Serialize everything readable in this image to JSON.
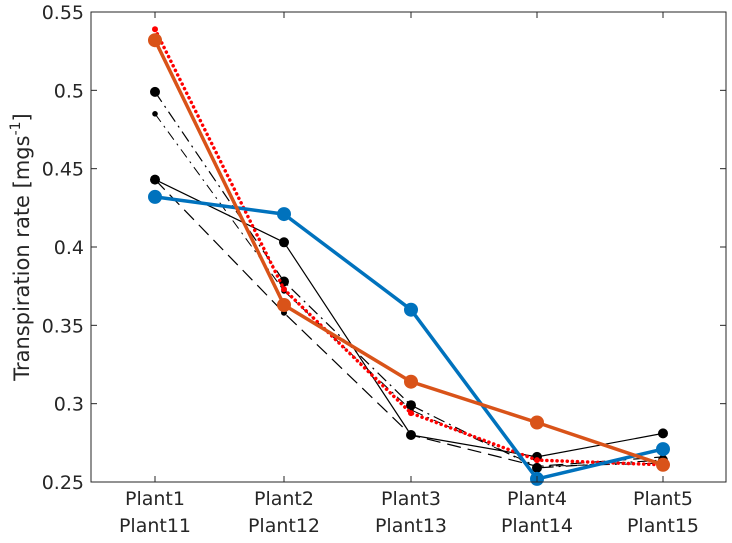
{
  "chart_data": {
    "type": "line",
    "title": "",
    "xlabel": "",
    "ylabel": "Transpiration rate [mgs",
    "ylabel_superscript": "-1",
    "ylabel_suffix": "]",
    "ylim": [
      0.25,
      0.55
    ],
    "yticks": [
      "0.25",
      "0.3",
      "0.35",
      "0.4",
      "0.45",
      "0.5",
      "0.55"
    ],
    "categories": [
      [
        "Plant1",
        "Plant11"
      ],
      [
        "Plant2",
        "Plant12"
      ],
      [
        "Plant3",
        "Plant13"
      ],
      [
        "Plant4",
        "Plant14"
      ],
      [
        "Plant5",
        "Plant15"
      ]
    ],
    "grid": false,
    "legend": "none",
    "series": [
      {
        "style": "solid-thin",
        "color": "#000000",
        "values": [
          0.443,
          0.403,
          0.28,
          0.266,
          0.281
        ]
      },
      {
        "style": "dashed",
        "color": "#000000",
        "values": [
          0.443,
          0.358,
          0.28,
          0.26,
          0.266
        ]
      },
      {
        "style": "dashdot",
        "color": "#000000",
        "values": [
          0.499,
          0.378,
          0.299,
          0.259,
          0.264
        ]
      },
      {
        "style": "dashdot-small",
        "color": "#000000",
        "values": [
          0.485,
          0.372,
          0.296,
          0.26,
          0.262
        ]
      },
      {
        "style": "dotted",
        "color": "#ff0000",
        "values": [
          0.539,
          0.373,
          0.294,
          0.264,
          0.261
        ]
      },
      {
        "style": "solid-thick",
        "color": "#0072bd",
        "values": [
          0.432,
          0.421,
          0.36,
          0.252,
          0.271
        ]
      },
      {
        "style": "solid-thick",
        "color": "#d95319",
        "values": [
          0.532,
          0.363,
          0.314,
          0.288,
          0.261
        ]
      }
    ]
  }
}
